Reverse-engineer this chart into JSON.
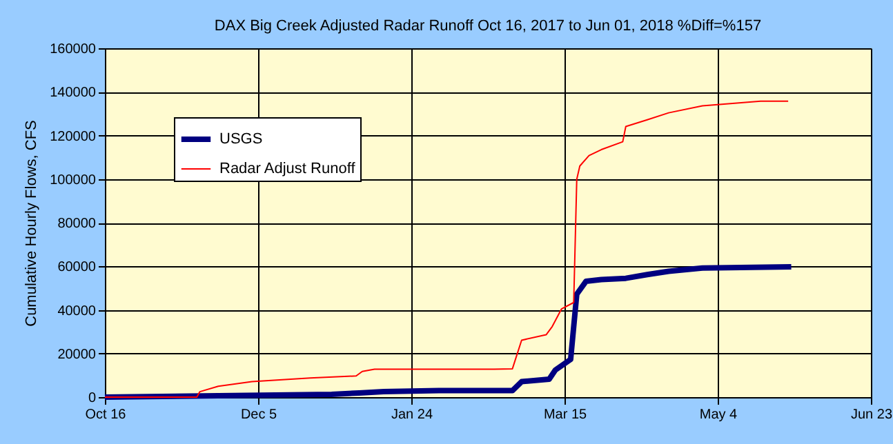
{
  "chart_data": {
    "type": "line",
    "title": "DAX Big Creek Adjusted Radar Runoff Oct 16, 2017 to Jun 01, 2018 %Diff=%157",
    "ylabel": "Cumulative Hourly Flows, CFS",
    "xlim": [
      "2017-10-16",
      "2018-06-23"
    ],
    "xticks": [
      {
        "value": "2017-10-16",
        "label": "Oct 16"
      },
      {
        "value": "2017-12-05",
        "label": "Dec 5"
      },
      {
        "value": "2018-01-24",
        "label": "Jan 24"
      },
      {
        "value": "2018-03-15",
        "label": "Mar 15"
      },
      {
        "value": "2018-05-04",
        "label": "May 4"
      },
      {
        "value": "2018-06-23",
        "label": "Jun 23"
      }
    ],
    "ylim": [
      0,
      160000
    ],
    "yticks": [
      0,
      20000,
      40000,
      60000,
      80000,
      100000,
      120000,
      140000,
      160000
    ],
    "grid": true,
    "legend": "top left",
    "marker": "none",
    "line_style": "solid",
    "series": [
      {
        "name": "USGS",
        "color": "#000080",
        "x": [
          "2017-10-16",
          "2017-11-22",
          "2017-12-29",
          "2018-01-07",
          "2018-01-15",
          "2018-02-02",
          "2018-02-26",
          "2018-03-01",
          "2018-03-10",
          "2018-03-12",
          "2018-03-17",
          "2018-03-19",
          "2018-03-22",
          "2018-03-27",
          "2018-04-04",
          "2018-04-11",
          "2018-04-18",
          "2018-04-29",
          "2018-05-28"
        ],
        "values": [
          0,
          600,
          1300,
          1900,
          2500,
          3000,
          3000,
          7100,
          8200,
          12400,
          17300,
          47200,
          53100,
          53900,
          54500,
          56200,
          57700,
          59200,
          59800
        ]
      },
      {
        "name": "Radar Adjust Runoff",
        "color": "#ff0000",
        "x": [
          "2017-10-16",
          "2017-11-15",
          "2017-11-16",
          "2017-11-22",
          "2017-12-03",
          "2017-12-22",
          "2018-01-06",
          "2018-01-08",
          "2018-01-12",
          "2018-02-20",
          "2018-02-26",
          "2018-03-01",
          "2018-03-09",
          "2018-03-11",
          "2018-03-14",
          "2018-03-18",
          "2018-03-19",
          "2018-03-20",
          "2018-03-23",
          "2018-03-27",
          "2018-04-03",
          "2018-04-04",
          "2018-04-11",
          "2018-04-18",
          "2018-04-29",
          "2018-05-18",
          "2018-05-27"
        ],
        "values": [
          0,
          0,
          2500,
          5000,
          7100,
          8800,
          9700,
          11800,
          12800,
          12800,
          13000,
          26100,
          28600,
          32400,
          40400,
          43400,
          99900,
          106000,
          110800,
          113500,
          117100,
          124100,
          127200,
          130400,
          133600,
          135700,
          135700
        ]
      }
    ]
  }
}
